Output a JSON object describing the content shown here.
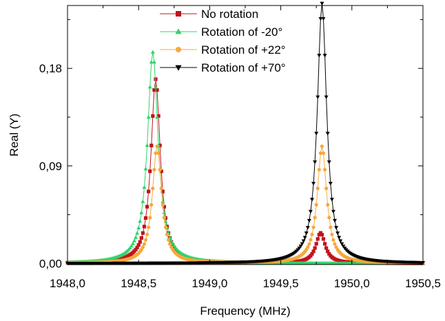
{
  "chart_data": {
    "type": "line",
    "xlabel": "Frequency (MHz)",
    "ylabel": "Real (Y)",
    "xlim": [
      1948.0,
      1950.5
    ],
    "ylim": [
      -0.001,
      0.238
    ],
    "x_ticks": [
      1948.0,
      1948.5,
      1949.0,
      1949.5,
      1950.0,
      1950.5
    ],
    "x_tick_labels": [
      "1948,0",
      "1948,5",
      "1949,0",
      "1949,5",
      "1950,0",
      "1950,5"
    ],
    "y_ticks": [
      0.0,
      0.09,
      0.18
    ],
    "y_tick_labels": [
      "0,00",
      "0,09",
      "0,18"
    ],
    "grid": false,
    "legend_position": "top-center",
    "series": [
      {
        "name": "No rotation",
        "color": "#c0141b",
        "marker": "square",
        "resonances": [
          {
            "x0": 1948.62,
            "peak": 0.17,
            "hwhm": 0.04
          },
          {
            "x0": 1949.78,
            "peak": 0.028,
            "hwhm": 0.04
          }
        ]
      },
      {
        "name": "Rotation of -20°",
        "color": "#2fd36a",
        "marker": "triangle-up",
        "resonances": [
          {
            "x0": 1948.6,
            "peak": 0.195,
            "hwhm": 0.045
          }
        ]
      },
      {
        "name": "Rotation of +22°",
        "color": "#f5a93c",
        "marker": "circle",
        "resonances": [
          {
            "x0": 1948.63,
            "peak": 0.108,
            "hwhm": 0.04
          },
          {
            "x0": 1949.79,
            "peak": 0.108,
            "hwhm": 0.04
          }
        ]
      },
      {
        "name": "Rotation of +70°",
        "color": "#000000",
        "marker": "triangle-down",
        "resonances": [
          {
            "x0": 1949.79,
            "peak": 0.24,
            "hwhm": 0.04
          }
        ]
      }
    ]
  }
}
